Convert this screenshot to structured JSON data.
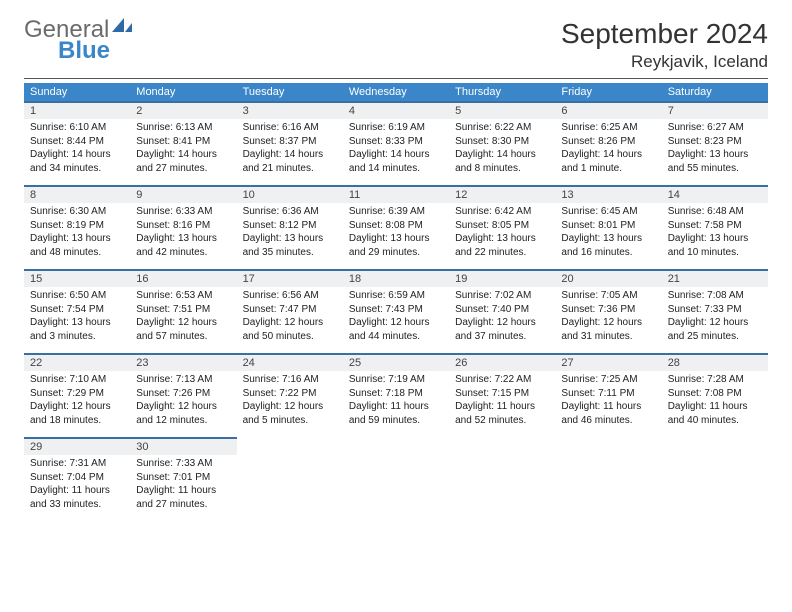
{
  "brand": {
    "general": "General",
    "blue": "Blue"
  },
  "title": "September 2024",
  "location": "Reykjavik, Iceland",
  "colors": {
    "header_bg": "#3a86c8",
    "header_text": "#ffffff",
    "daynum_bg": "#eef0f1",
    "daynum_border": "#3a6fa3",
    "body_bg": "#ffffff",
    "text": "#222222",
    "logo_gray": "#6b6b6b",
    "logo_blue": "#3a86c8"
  },
  "week_header": [
    "Sunday",
    "Monday",
    "Tuesday",
    "Wednesday",
    "Thursday",
    "Friday",
    "Saturday"
  ],
  "weeks": [
    [
      {
        "n": "1",
        "l1": "Sunrise: 6:10 AM",
        "l2": "Sunset: 8:44 PM",
        "l3": "Daylight: 14 hours",
        "l4": "and 34 minutes."
      },
      {
        "n": "2",
        "l1": "Sunrise: 6:13 AM",
        "l2": "Sunset: 8:41 PM",
        "l3": "Daylight: 14 hours",
        "l4": "and 27 minutes."
      },
      {
        "n": "3",
        "l1": "Sunrise: 6:16 AM",
        "l2": "Sunset: 8:37 PM",
        "l3": "Daylight: 14 hours",
        "l4": "and 21 minutes."
      },
      {
        "n": "4",
        "l1": "Sunrise: 6:19 AM",
        "l2": "Sunset: 8:33 PM",
        "l3": "Daylight: 14 hours",
        "l4": "and 14 minutes."
      },
      {
        "n": "5",
        "l1": "Sunrise: 6:22 AM",
        "l2": "Sunset: 8:30 PM",
        "l3": "Daylight: 14 hours",
        "l4": "and 8 minutes."
      },
      {
        "n": "6",
        "l1": "Sunrise: 6:25 AM",
        "l2": "Sunset: 8:26 PM",
        "l3": "Daylight: 14 hours",
        "l4": "and 1 minute."
      },
      {
        "n": "7",
        "l1": "Sunrise: 6:27 AM",
        "l2": "Sunset: 8:23 PM",
        "l3": "Daylight: 13 hours",
        "l4": "and 55 minutes."
      }
    ],
    [
      {
        "n": "8",
        "l1": "Sunrise: 6:30 AM",
        "l2": "Sunset: 8:19 PM",
        "l3": "Daylight: 13 hours",
        "l4": "and 48 minutes."
      },
      {
        "n": "9",
        "l1": "Sunrise: 6:33 AM",
        "l2": "Sunset: 8:16 PM",
        "l3": "Daylight: 13 hours",
        "l4": "and 42 minutes."
      },
      {
        "n": "10",
        "l1": "Sunrise: 6:36 AM",
        "l2": "Sunset: 8:12 PM",
        "l3": "Daylight: 13 hours",
        "l4": "and 35 minutes."
      },
      {
        "n": "11",
        "l1": "Sunrise: 6:39 AM",
        "l2": "Sunset: 8:08 PM",
        "l3": "Daylight: 13 hours",
        "l4": "and 29 minutes."
      },
      {
        "n": "12",
        "l1": "Sunrise: 6:42 AM",
        "l2": "Sunset: 8:05 PM",
        "l3": "Daylight: 13 hours",
        "l4": "and 22 minutes."
      },
      {
        "n": "13",
        "l1": "Sunrise: 6:45 AM",
        "l2": "Sunset: 8:01 PM",
        "l3": "Daylight: 13 hours",
        "l4": "and 16 minutes."
      },
      {
        "n": "14",
        "l1": "Sunrise: 6:48 AM",
        "l2": "Sunset: 7:58 PM",
        "l3": "Daylight: 13 hours",
        "l4": "and 10 minutes."
      }
    ],
    [
      {
        "n": "15",
        "l1": "Sunrise: 6:50 AM",
        "l2": "Sunset: 7:54 PM",
        "l3": "Daylight: 13 hours",
        "l4": "and 3 minutes."
      },
      {
        "n": "16",
        "l1": "Sunrise: 6:53 AM",
        "l2": "Sunset: 7:51 PM",
        "l3": "Daylight: 12 hours",
        "l4": "and 57 minutes."
      },
      {
        "n": "17",
        "l1": "Sunrise: 6:56 AM",
        "l2": "Sunset: 7:47 PM",
        "l3": "Daylight: 12 hours",
        "l4": "and 50 minutes."
      },
      {
        "n": "18",
        "l1": "Sunrise: 6:59 AM",
        "l2": "Sunset: 7:43 PM",
        "l3": "Daylight: 12 hours",
        "l4": "and 44 minutes."
      },
      {
        "n": "19",
        "l1": "Sunrise: 7:02 AM",
        "l2": "Sunset: 7:40 PM",
        "l3": "Daylight: 12 hours",
        "l4": "and 37 minutes."
      },
      {
        "n": "20",
        "l1": "Sunrise: 7:05 AM",
        "l2": "Sunset: 7:36 PM",
        "l3": "Daylight: 12 hours",
        "l4": "and 31 minutes."
      },
      {
        "n": "21",
        "l1": "Sunrise: 7:08 AM",
        "l2": "Sunset: 7:33 PM",
        "l3": "Daylight: 12 hours",
        "l4": "and 25 minutes."
      }
    ],
    [
      {
        "n": "22",
        "l1": "Sunrise: 7:10 AM",
        "l2": "Sunset: 7:29 PM",
        "l3": "Daylight: 12 hours",
        "l4": "and 18 minutes."
      },
      {
        "n": "23",
        "l1": "Sunrise: 7:13 AM",
        "l2": "Sunset: 7:26 PM",
        "l3": "Daylight: 12 hours",
        "l4": "and 12 minutes."
      },
      {
        "n": "24",
        "l1": "Sunrise: 7:16 AM",
        "l2": "Sunset: 7:22 PM",
        "l3": "Daylight: 12 hours",
        "l4": "and 5 minutes."
      },
      {
        "n": "25",
        "l1": "Sunrise: 7:19 AM",
        "l2": "Sunset: 7:18 PM",
        "l3": "Daylight: 11 hours",
        "l4": "and 59 minutes."
      },
      {
        "n": "26",
        "l1": "Sunrise: 7:22 AM",
        "l2": "Sunset: 7:15 PM",
        "l3": "Daylight: 11 hours",
        "l4": "and 52 minutes."
      },
      {
        "n": "27",
        "l1": "Sunrise: 7:25 AM",
        "l2": "Sunset: 7:11 PM",
        "l3": "Daylight: 11 hours",
        "l4": "and 46 minutes."
      },
      {
        "n": "28",
        "l1": "Sunrise: 7:28 AM",
        "l2": "Sunset: 7:08 PM",
        "l3": "Daylight: 11 hours",
        "l4": "and 40 minutes."
      }
    ],
    [
      {
        "n": "29",
        "l1": "Sunrise: 7:31 AM",
        "l2": "Sunset: 7:04 PM",
        "l3": "Daylight: 11 hours",
        "l4": "and 33 minutes."
      },
      {
        "n": "30",
        "l1": "Sunrise: 7:33 AM",
        "l2": "Sunset: 7:01 PM",
        "l3": "Daylight: 11 hours",
        "l4": "and 27 minutes."
      },
      {
        "empty": true
      },
      {
        "empty": true
      },
      {
        "empty": true
      },
      {
        "empty": true
      },
      {
        "empty": true
      }
    ]
  ]
}
